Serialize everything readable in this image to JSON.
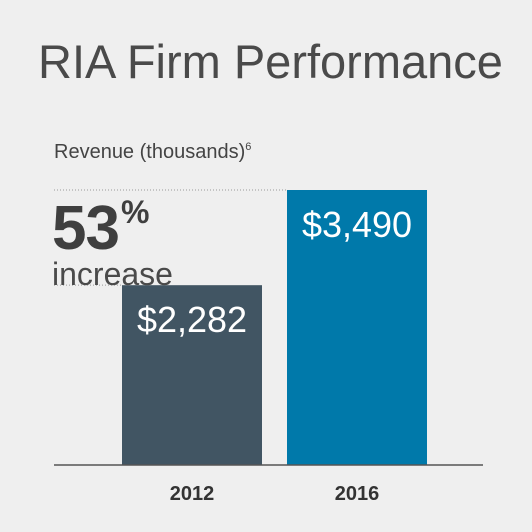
{
  "chart_data": {
    "type": "bar",
    "title": "RIA Firm Performance",
    "subtitle": "Revenue (thousands)",
    "subtitle_footnote": "6",
    "categories": [
      "2012",
      "2016"
    ],
    "values": [
      2282,
      3490
    ],
    "value_labels": [
      "$2,282",
      "$3,490"
    ],
    "colors": [
      "#415563",
      "#0079aa"
    ],
    "annotation": {
      "value": "53",
      "unit": "%",
      "text": "increase"
    },
    "xlabel": "",
    "ylabel": "",
    "ylim": [
      0,
      3490
    ],
    "grid": false
  }
}
